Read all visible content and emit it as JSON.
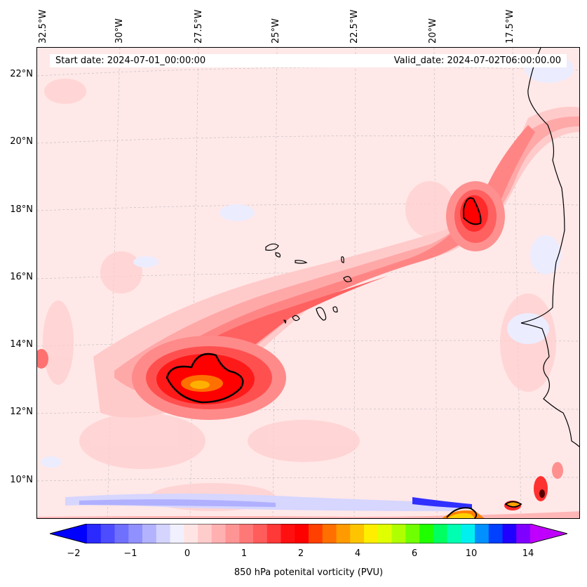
{
  "map": {
    "start_date": "Start date: 2024-07-01_00:00:00",
    "valid_date": "Valid_date: 2024-07-02T06:00:00.00",
    "longitude_labels": [
      "32.5°W",
      "30°W",
      "27.5°W",
      "25°W",
      "22.5°W",
      "20°W",
      "17.5°W"
    ],
    "latitude_labels": [
      "22°N",
      "20°N",
      "18°N",
      "16°N",
      "14°N",
      "12°N",
      "10°N"
    ],
    "features": [
      "Cape Verde Islands",
      "West African coastline",
      "African easterly wave PV maximum"
    ]
  },
  "colorbar": {
    "label": "850 hPa potenital vorticity (PVU)",
    "ticks": [
      "−2",
      "−1",
      "0",
      "1",
      "2",
      "4",
      "6",
      "10",
      "14"
    ],
    "colors": [
      "#0000ff",
      "#2a2aff",
      "#4d4dff",
      "#7070ff",
      "#9090ff",
      "#b2b2ff",
      "#d4d4ff",
      "#f0f0ff",
      "#ffe4e4",
      "#ffcccc",
      "#ffb0b0",
      "#ff9494",
      "#ff7878",
      "#ff5c5c",
      "#ff3838",
      "#ff1010",
      "#ff0000",
      "#ff4000",
      "#ff7000",
      "#ff9a00",
      "#ffc400",
      "#ffee00",
      "#e0ff00",
      "#b0ff00",
      "#70ff00",
      "#20ff00",
      "#00ff60",
      "#00ffb0",
      "#00f0f0",
      "#0090ff",
      "#0040ff",
      "#2000ff",
      "#8000ff",
      "#c000ff"
    ]
  }
}
